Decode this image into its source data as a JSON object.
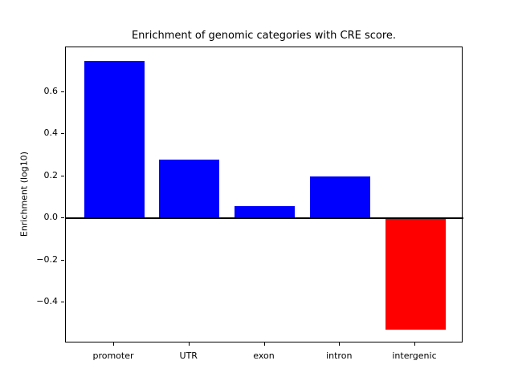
{
  "chart_data": {
    "type": "bar",
    "title": "Enrichment of genomic categories with CRE score.",
    "xlabel": "",
    "ylabel": "Enrichment (log10)",
    "categories": [
      "promoter",
      "UTR",
      "exon",
      "intron",
      "intergenic"
    ],
    "values": [
      0.75,
      0.28,
      0.06,
      0.2,
      -0.53
    ],
    "bar_colors": [
      "#0000ff",
      "#0000ff",
      "#0000ff",
      "#0000ff",
      "#ff0000"
    ],
    "yticks": [
      0.6,
      0.4,
      0.2,
      0.0,
      -0.2,
      -0.4
    ],
    "ytick_labels": [
      "0.6",
      "0.4",
      "0.2",
      "0.0",
      "−0.2",
      "−0.4"
    ],
    "ylim": [
      -0.594,
      0.814
    ],
    "xlim": [
      -0.64,
      4.64
    ],
    "bar_width_units": 0.8,
    "zero_line_color": "#000000",
    "axis_color": "#000000",
    "background_color": "#ffffff",
    "grid": false,
    "legend": false
  }
}
